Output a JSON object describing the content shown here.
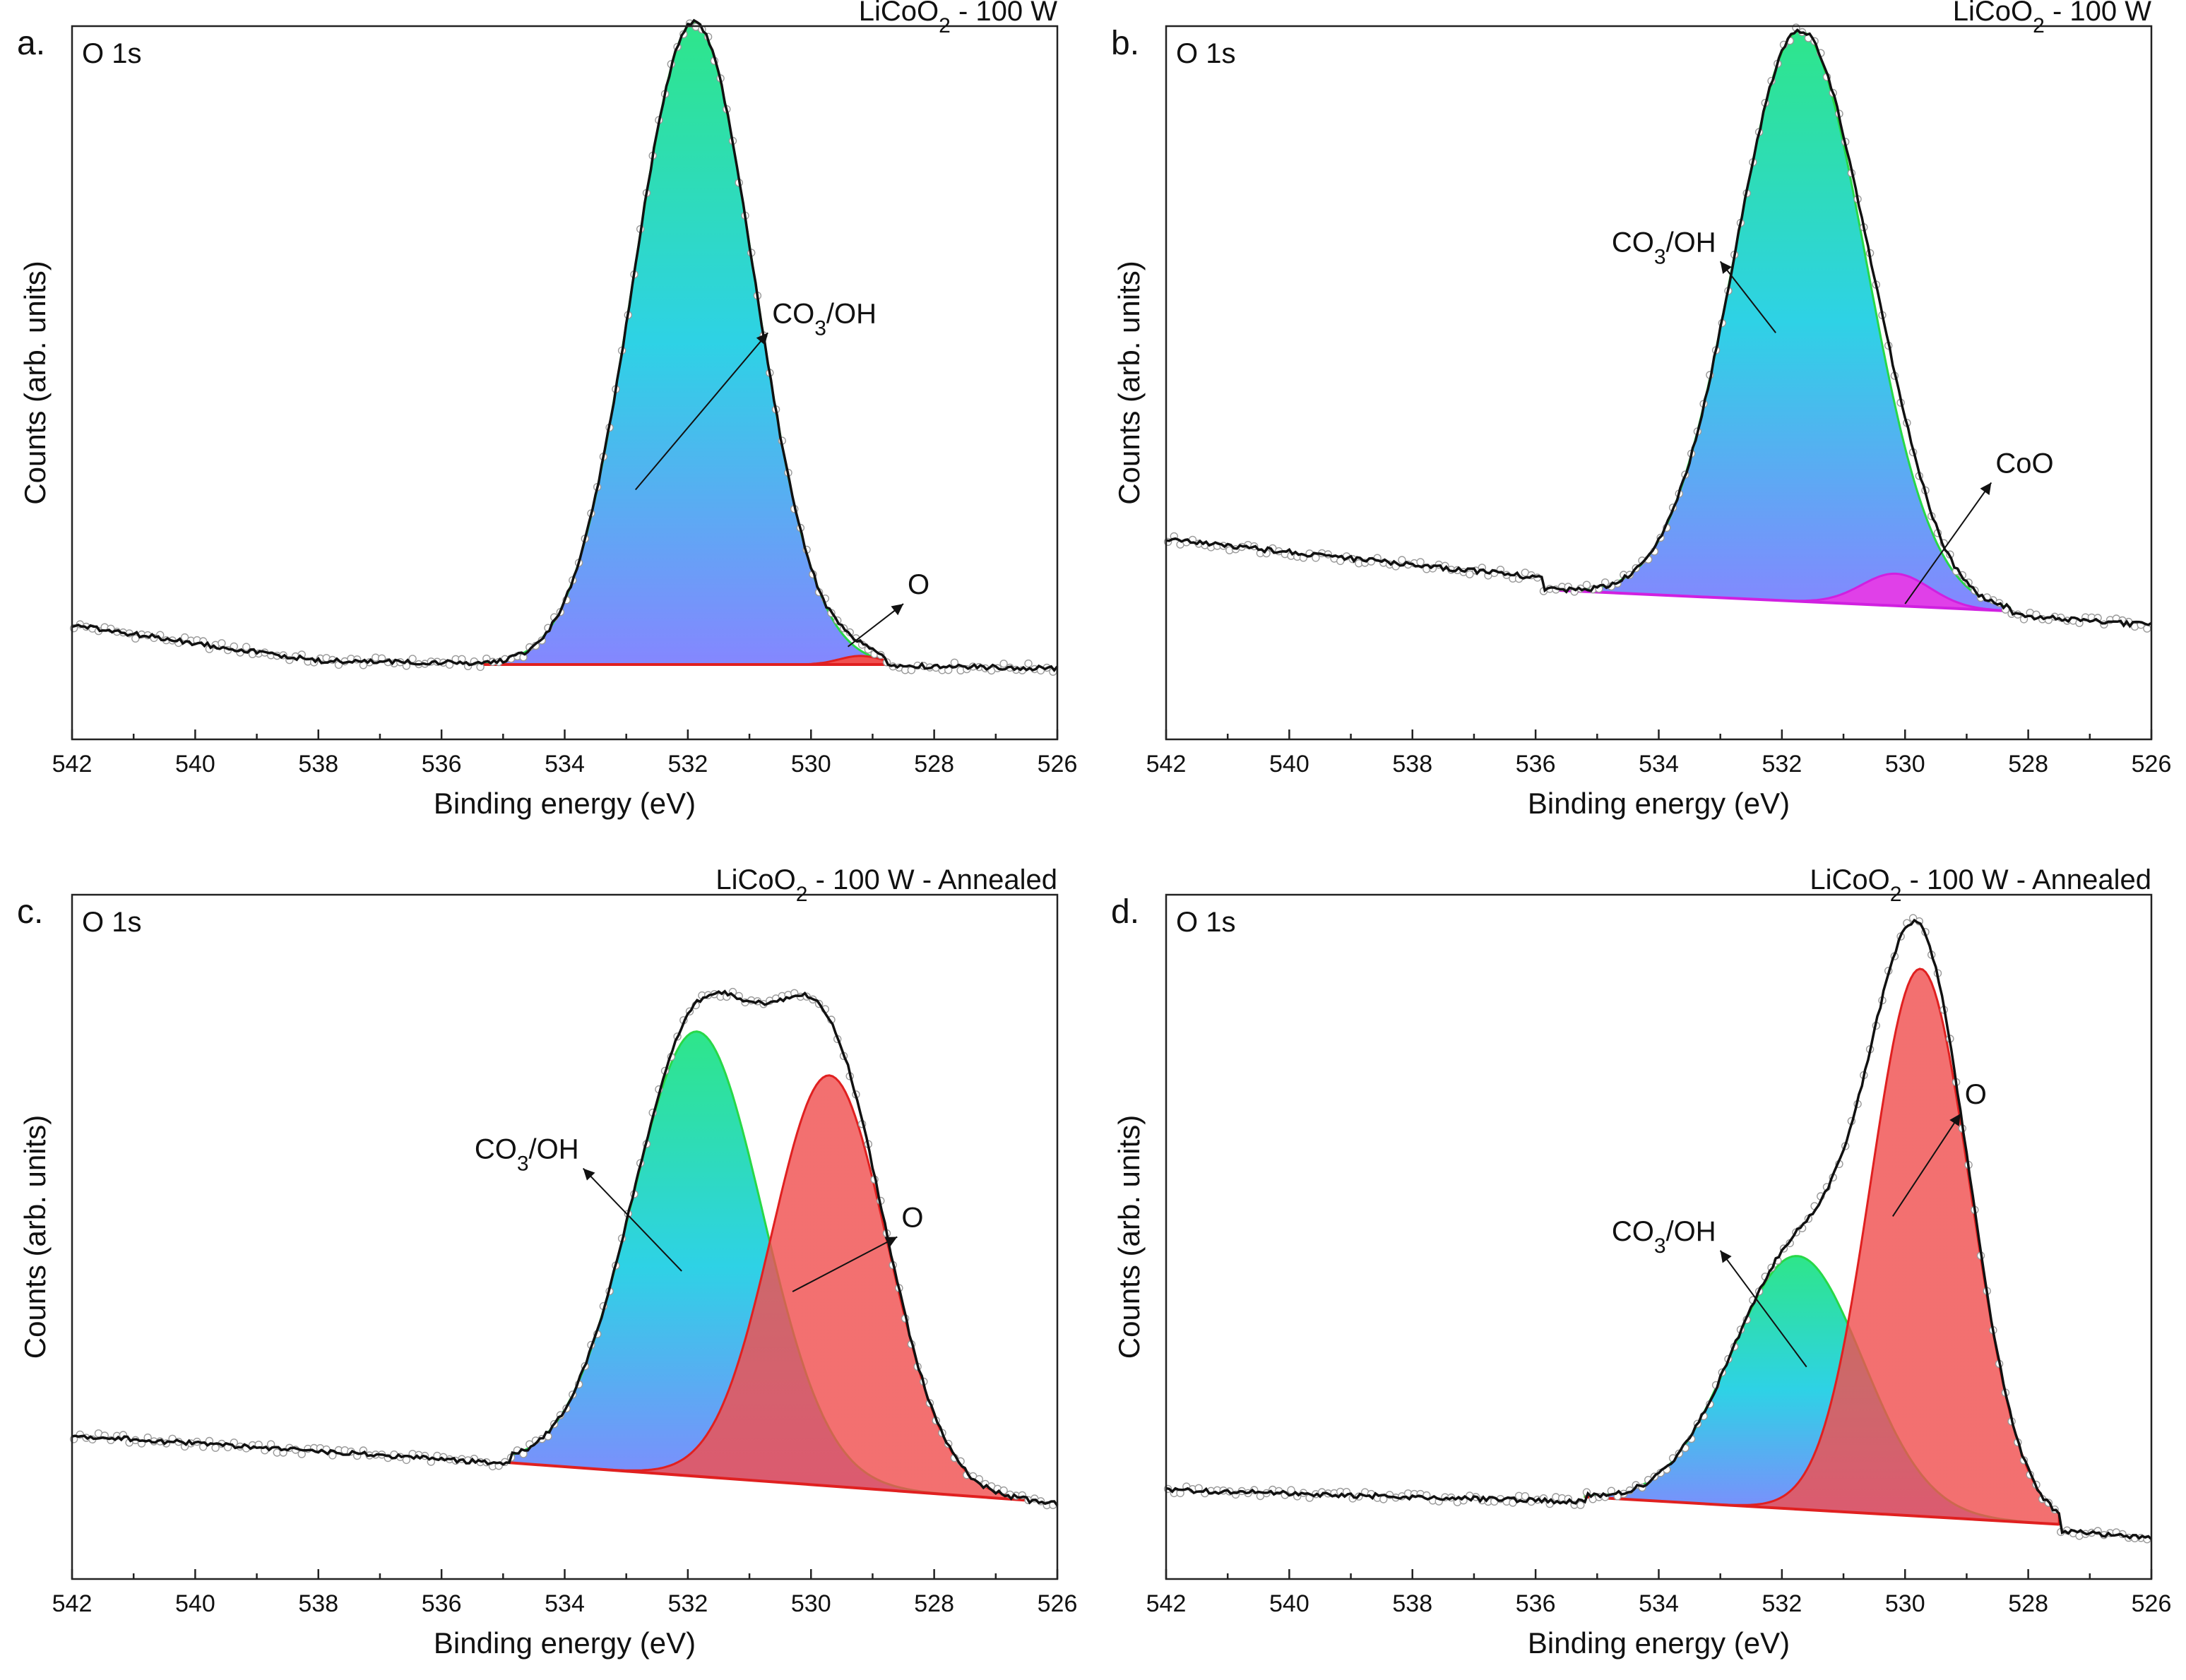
{
  "chart_data": [
    {
      "type": "line",
      "panel": "a.",
      "title": "LiCoO₂ - 100 W",
      "region": "O 1s",
      "xlabel": "Binding energy (eV)",
      "ylabel": "Counts (arb. units)",
      "xlim": [
        542,
        526
      ],
      "ylim": [
        0,
        100
      ],
      "xticks": [
        "542",
        "540",
        "538",
        "536",
        "534",
        "532",
        "530",
        "528",
        "526"
      ],
      "background": {
        "x": [
          535.4,
          528.8
        ],
        "y": [
          10.5,
          10.5
        ]
      },
      "baseline": {
        "x": [
          542,
          538,
          534,
          530,
          526
        ],
        "y": [
          16,
          11,
          10.5,
          10.5,
          10
        ]
      },
      "components": [
        {
          "name": "CO3/OH",
          "label": "CO₃/OH",
          "center": 531.9,
          "height": 90,
          "fwhm": 2.3,
          "fill": [
            "#00e070",
            "#00c8e0",
            "#6a6cff"
          ],
          "edge": "#28d848",
          "arrow_from": [
            532.85,
            35
          ],
          "arrow_to": [
            530.7,
            57
          ]
        },
        {
          "name": "O",
          "label": "O",
          "center": 529.2,
          "height": 1.2,
          "fwhm": 0.8,
          "fill": [
            "#f05050",
            "#f05050",
            "#f05050"
          ],
          "edge": "#e02020",
          "arrow_from": [
            529.4,
            13
          ],
          "arrow_to": [
            528.5,
            19
          ]
        }
      ]
    },
    {
      "type": "line",
      "panel": "b.",
      "title": "LiCoO₂ - 100 W",
      "region": "O 1s",
      "xlabel": "Binding energy (eV)",
      "ylabel": "Counts (arb. units)",
      "xlim": [
        542,
        526
      ],
      "ylim": [
        0,
        100
      ],
      "xticks": [
        "542",
        "540",
        "538",
        "536",
        "534",
        "532",
        "530",
        "528",
        "526"
      ],
      "background": {
        "x": [
          535.9,
          528.3
        ],
        "y": [
          21,
          18
        ]
      },
      "baseline": {
        "x": [
          542,
          538,
          534,
          530,
          526
        ],
        "y": [
          28,
          24.5,
          21,
          18.5,
          16
        ]
      },
      "components": [
        {
          "name": "CO3/OH",
          "label": "CO₃/OH",
          "center": 531.7,
          "height": 80,
          "fwhm": 2.5,
          "fill": [
            "#00e070",
            "#00c8e0",
            "#6a6cff"
          ],
          "edge": "#28d848",
          "arrow_from": [
            532.1,
            57
          ],
          "arrow_to": [
            533.0,
            67
          ]
        },
        {
          "name": "CoO",
          "label": "CoO",
          "center": 530.15,
          "height": 4.5,
          "fwhm": 1.3,
          "fill": [
            "#e040e8",
            "#e040e8",
            "#e040e8"
          ],
          "edge": "#d020e0",
          "arrow_from": [
            530.0,
            19
          ],
          "arrow_to": [
            528.6,
            36
          ]
        }
      ]
    },
    {
      "type": "line",
      "panel": "c.",
      "title": "LiCoO₂ - 100 W - Annealed",
      "region": "O 1s",
      "xlabel": "Binding energy (eV)",
      "ylabel": "Counts (arb. units)",
      "xlim": [
        542,
        526
      ],
      "ylim": [
        0,
        100
      ],
      "xticks": [
        "542",
        "540",
        "538",
        "536",
        "534",
        "532",
        "530",
        "528",
        "526"
      ],
      "background": {
        "x": [
          534.9,
          526.5
        ],
        "y": [
          17,
          11.5
        ]
      },
      "baseline": {
        "x": [
          542,
          536,
          535.2,
          534,
          530,
          526
        ],
        "y": [
          21,
          17.5,
          17,
          16.5,
          13.5,
          11
        ]
      },
      "components": [
        {
          "name": "CO3/OH",
          "label": "CO₃/OH",
          "center": 531.85,
          "height": 65,
          "fwhm": 2.5,
          "fill": [
            "#00e070",
            "#00c8e0",
            "#6a6cff"
          ],
          "edge": "#28d848",
          "arrow_from": [
            532.1,
            45
          ],
          "arrow_to": [
            533.7,
            60
          ]
        },
        {
          "name": "O",
          "label": "O",
          "center": 529.7,
          "height": 60,
          "fwhm": 2.2,
          "fill": [
            "#f05050",
            "#f05050",
            "#f05050"
          ],
          "edge": "#e02020",
          "arrow_from": [
            530.3,
            42
          ],
          "arrow_to": [
            528.6,
            50
          ]
        }
      ]
    },
    {
      "type": "line",
      "panel": "d.",
      "title": "LiCoO₂ - 100 W - Annealed",
      "region": "O 1s",
      "xlabel": "Binding energy (eV)",
      "ylabel": "Counts (arb. units)",
      "xlim": [
        542,
        526
      ],
      "ylim": [
        0,
        100
      ],
      "xticks": [
        "542",
        "540",
        "538",
        "536",
        "534",
        "532",
        "530",
        "528",
        "526"
      ],
      "background": {
        "x": [
          535.2,
          527.5
        ],
        "y": [
          12,
          8
        ]
      },
      "baseline": {
        "x": [
          542,
          538,
          534,
          530,
          526
        ],
        "y": [
          13,
          12,
          11,
          9,
          6
        ]
      },
      "components": [
        {
          "name": "CO3/OH",
          "label": "CO₃/OH",
          "center": 531.75,
          "height": 37,
          "fwhm": 2.5,
          "fill": [
            "#00e070",
            "#00c8e0",
            "#6a6cff"
          ],
          "edge": "#28d848",
          "arrow_from": [
            531.6,
            31
          ],
          "arrow_to": [
            533.0,
            48
          ]
        },
        {
          "name": "O",
          "label": "O",
          "center": 529.75,
          "height": 80,
          "fwhm": 1.9,
          "fill": [
            "#f05050",
            "#f05050",
            "#f05050"
          ],
          "edge": "#e02020",
          "arrow_from": [
            530.2,
            53
          ],
          "arrow_to": [
            529.1,
            68
          ]
        }
      ]
    }
  ]
}
